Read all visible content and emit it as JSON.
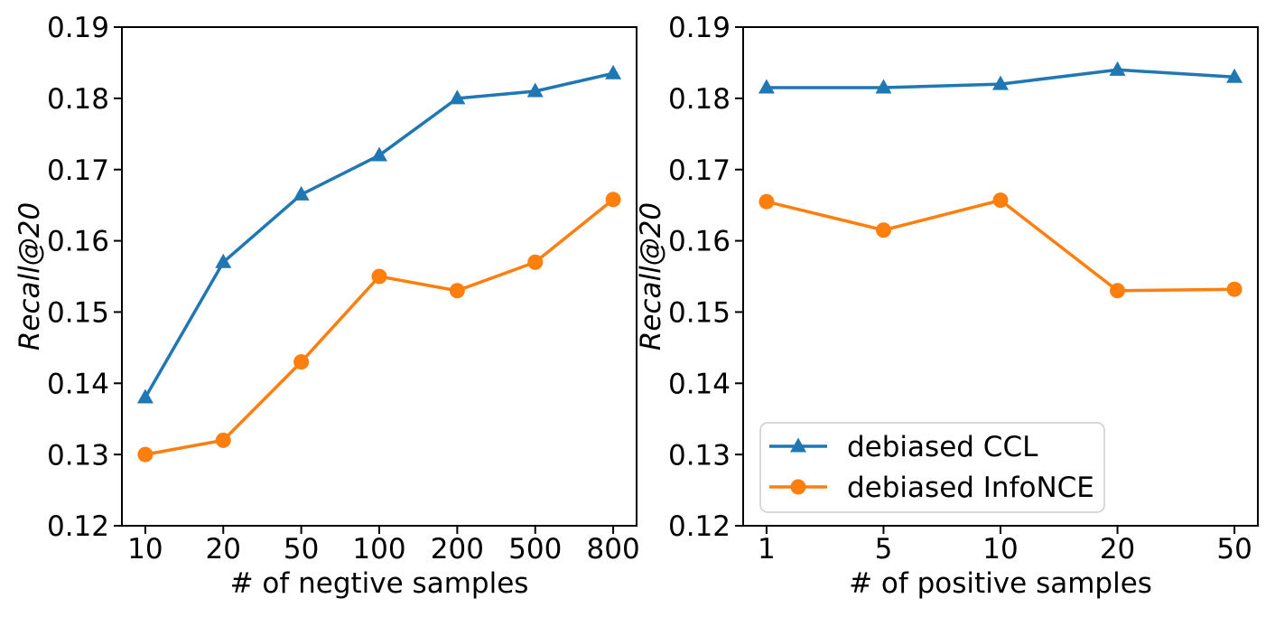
{
  "figure": {
    "background": "#ffffff",
    "axis_color": "#000000"
  },
  "chart_data": [
    {
      "type": "line",
      "title": "",
      "xlabel": "# of negtive samples",
      "ylabel": "Recall@20",
      "categories": [
        "10",
        "20",
        "50",
        "100",
        "200",
        "500",
        "800"
      ],
      "x_margin": 0.05,
      "ylim": [
        0.12,
        0.19
      ],
      "yticks": [
        0.12,
        0.13,
        0.14,
        0.15,
        0.16,
        0.17,
        0.18,
        0.19
      ],
      "ytick_labels": [
        "0.12",
        "0.13",
        "0.14",
        "0.15",
        "0.16",
        "0.17",
        "0.18",
        "0.19"
      ],
      "grid": false,
      "legend": {
        "show": false
      },
      "series": [
        {
          "name": "debiased CCL",
          "marker": "triangle",
          "color": "#1f77b4",
          "values": [
            0.138,
            0.157,
            0.1665,
            0.172,
            0.18,
            0.181,
            0.1835
          ]
        },
        {
          "name": "debiased InfoNCE",
          "marker": "circle",
          "color": "#ff7f0e",
          "values": [
            0.13,
            0.132,
            0.143,
            0.155,
            0.153,
            0.157,
            0.1658
          ]
        }
      ]
    },
    {
      "type": "line",
      "title": "",
      "xlabel": "# of positive samples",
      "ylabel": "Recall@20",
      "categories": [
        "1",
        "5",
        "10",
        "20",
        "50"
      ],
      "x_margin": 0.05,
      "ylim": [
        0.12,
        0.19
      ],
      "yticks": [
        0.12,
        0.13,
        0.14,
        0.15,
        0.16,
        0.17,
        0.18,
        0.19
      ],
      "ytick_labels": [
        "0.12",
        "0.13",
        "0.14",
        "0.15",
        "0.16",
        "0.17",
        "0.18",
        "0.19"
      ],
      "grid": false,
      "legend": {
        "show": true,
        "position": "lower left"
      },
      "series": [
        {
          "name": "debiased CCL",
          "marker": "triangle",
          "color": "#1f77b4",
          "values": [
            0.1815,
            0.1815,
            0.182,
            0.184,
            0.183
          ]
        },
        {
          "name": "debiased InfoNCE",
          "marker": "circle",
          "color": "#ff7f0e",
          "values": [
            0.1655,
            0.1615,
            0.1657,
            0.153,
            0.1532
          ]
        }
      ]
    }
  ]
}
